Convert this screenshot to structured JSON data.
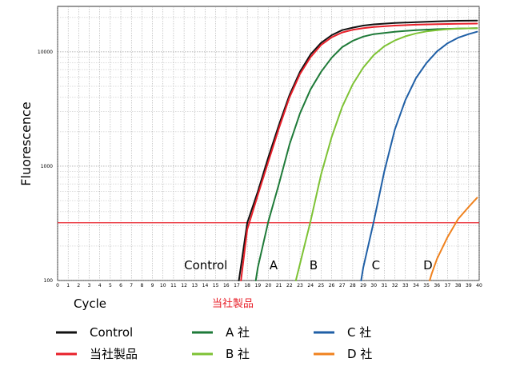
{
  "chart_data": {
    "type": "line",
    "xlabel": "Cycle",
    "ylabel": "Fluorescence",
    "subtitle": "当社製品",
    "x_ticks": [
      "0",
      "1",
      "2",
      "3",
      "4",
      "5",
      "6",
      "7",
      "8",
      "9",
      "10",
      "11",
      "12",
      "13",
      "14",
      "15",
      "16",
      "17",
      "18",
      "19",
      "20",
      "21",
      "22",
      "23",
      "24",
      "25",
      "26",
      "27",
      "28",
      "29",
      "30",
      "31",
      "32",
      "33",
      "34",
      "35",
      "36",
      "37",
      "38",
      "39",
      "40"
    ],
    "y_ticks": [
      "100",
      "1000",
      "10000"
    ],
    "xlim": [
      0,
      40
    ],
    "ylim": [
      100,
      25000
    ],
    "y_scale": "log",
    "grid": true,
    "threshold": {
      "value": 320,
      "color": "#e8202a"
    },
    "annotations": [
      {
        "text": "Control",
        "x": 12
      },
      {
        "text": "A",
        "x": 20.1
      },
      {
        "text": "B",
        "x": 23.9
      },
      {
        "text": "C",
        "x": 29.8
      },
      {
        "text": "D",
        "x": 34.7
      }
    ],
    "series": [
      {
        "name": "Control",
        "color": "#111111",
        "x": [
          17.2,
          18,
          19,
          20,
          21,
          22,
          23,
          24,
          25,
          26,
          27,
          28,
          29,
          30,
          32,
          34,
          36,
          38,
          39.8
        ],
        "y": [
          100,
          320,
          600,
          1200,
          2300,
          4200,
          6700,
          9500,
          12000,
          14000,
          15500,
          16300,
          17000,
          17400,
          17900,
          18200,
          18500,
          18700,
          18800
        ]
      },
      {
        "name": "当社製品",
        "color": "#e8202a",
        "x": [
          17.4,
          18,
          19,
          20,
          21,
          22,
          23,
          24,
          25,
          26,
          27,
          28,
          29,
          30,
          32,
          34,
          36,
          38,
          39.8
        ],
        "y": [
          100,
          280,
          560,
          1100,
          2150,
          4000,
          6400,
          9000,
          11500,
          13400,
          14800,
          15600,
          16100,
          16500,
          17000,
          17300,
          17500,
          17600,
          17700
        ]
      },
      {
        "name": "A 社",
        "color": "#1e7a38",
        "x": [
          18.8,
          19,
          20,
          21,
          22,
          23,
          24,
          25,
          26,
          27,
          28,
          29,
          30,
          32,
          34,
          36,
          38,
          39.8
        ],
        "y": [
          100,
          130,
          330,
          700,
          1550,
          2900,
          4700,
          6700,
          8900,
          11000,
          12500,
          13600,
          14300,
          15000,
          15500,
          15800,
          16000,
          16100
        ]
      },
      {
        "name": "B 社",
        "color": "#7dc234",
        "x": [
          22.6,
          23,
          24,
          25,
          26,
          27,
          28,
          29,
          30,
          31,
          32,
          33,
          34,
          35,
          36,
          37,
          38,
          39.8
        ],
        "y": [
          100,
          140,
          330,
          850,
          1800,
          3300,
          5200,
          7300,
          9400,
          11200,
          12600,
          13700,
          14500,
          15100,
          15500,
          15800,
          16000,
          16100
        ]
      },
      {
        "name": "C 社",
        "color": "#1f5fa6",
        "x": [
          28.8,
          29,
          30,
          31,
          32,
          33,
          34,
          35,
          36,
          37,
          38,
          39,
          39.8
        ],
        "y": [
          100,
          130,
          330,
          900,
          2100,
          3800,
          5900,
          8000,
          10100,
          11900,
          13300,
          14300,
          15000
        ]
      },
      {
        "name": "D 社",
        "color": "#f0821e",
        "x": [
          35.3,
          35.5,
          36,
          37,
          38,
          39,
          39.8
        ],
        "y": [
          100,
          115,
          155,
          240,
          345,
          440,
          530
        ]
      }
    ]
  }
}
